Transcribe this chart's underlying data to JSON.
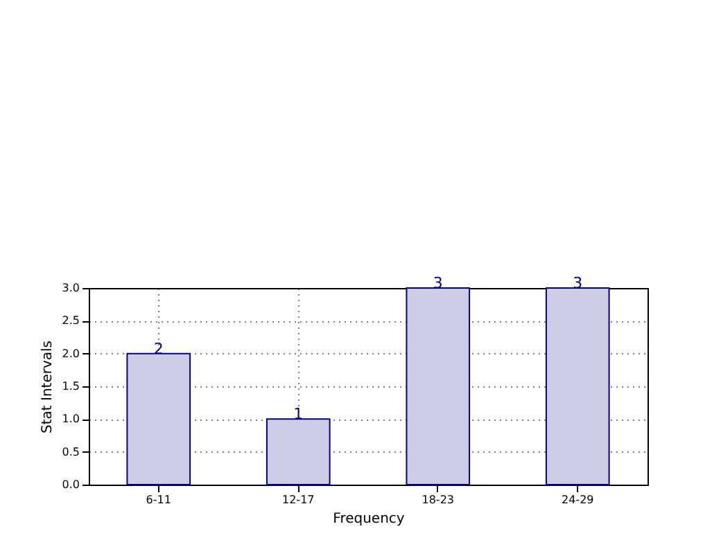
{
  "chart_data": {
    "type": "bar",
    "xlabel": "Frequency",
    "ylabel": "Stat Intervals",
    "categories": [
      "6-11",
      "12-17",
      "18-23",
      "24-29"
    ],
    "values": [
      2,
      1,
      3,
      3
    ],
    "color": "#cccce6",
    "ylim": [
      0,
      3
    ],
    "yticks": [
      {
        "value": 0,
        "label": "0.0"
      },
      {
        "value": 0.5,
        "label": "0.5"
      },
      {
        "value": 1,
        "label": "1.0"
      },
      {
        "value": 1.5,
        "label": "1.5"
      },
      {
        "value": 2,
        "label": "2.0"
      },
      {
        "value": 2.5,
        "label": "2.5"
      },
      {
        "value": 3,
        "label": "3.0"
      }
    ],
    "grid": true,
    "data_labels": true
  }
}
